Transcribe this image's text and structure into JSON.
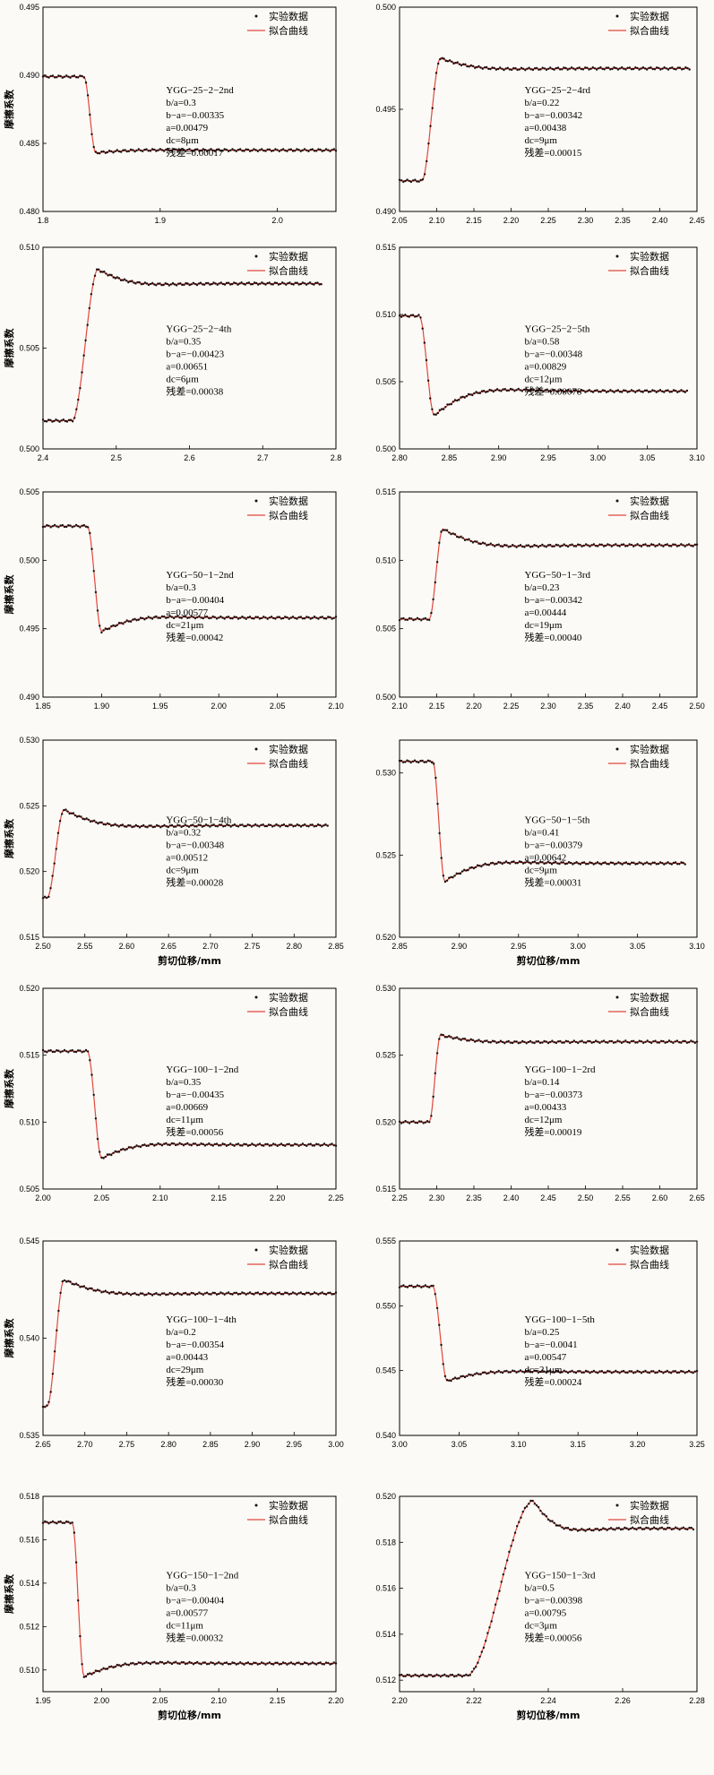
{
  "chart_data": [
    {
      "type": "scatter",
      "xlim": [
        1.8,
        2.05
      ],
      "ylim": [
        0.48,
        0.495
      ],
      "xticks": [
        "1.8",
        "1.9",
        "2.0"
      ],
      "xtickv": [
        1.8,
        1.9,
        2.0
      ],
      "yticks": [
        "0.480",
        "0.485",
        "0.490",
        "0.495"
      ],
      "ytickv": [
        0.48,
        0.485,
        0.49,
        0.495
      ],
      "ylabel": "摩擦系数",
      "xlabel": "",
      "legend": [
        "实验数据",
        "拟合曲线"
      ],
      "ann": [
        "YGG−25−2−2nd",
        "b/a=0.3",
        "b−a=−0.00335",
        "a=0.00479",
        "dc=8μm",
        "残差=0.00017"
      ],
      "model": {
        "x0": 1.835,
        "x1": 1.845,
        "ys": 0.4899,
        "ypk": 0.4843,
        "yss": 0.4845,
        "xe": 2.05
      }
    },
    {
      "type": "scatter",
      "xlim": [
        2.05,
        2.45
      ],
      "ylim": [
        0.49,
        0.5
      ],
      "xticks": [
        "2.05",
        "2.10",
        "2.15",
        "2.20",
        "2.25",
        "2.30",
        "2.35",
        "2.40",
        "2.45"
      ],
      "xtickv": [
        2.05,
        2.1,
        2.15,
        2.2,
        2.25,
        2.3,
        2.35,
        2.4,
        2.45
      ],
      "yticks": [
        "0.490",
        "0.495",
        "0.500"
      ],
      "ytickv": [
        0.49,
        0.495,
        0.5
      ],
      "ylabel": "",
      "xlabel": "",
      "legend": [
        "实验数据",
        "拟合曲线"
      ],
      "ann": [
        "YGG−25−2−4rd",
        "b/a=0.22",
        "b−a=−0.00342",
        "a=0.00438",
        "dc=9μm",
        "残差=0.00015"
      ],
      "model": {
        "x0": 2.08,
        "x1": 2.105,
        "ys": 0.4915,
        "ypk": 0.4975,
        "yss": 0.497,
        "xe": 2.44
      }
    },
    {
      "type": "scatter",
      "xlim": [
        2.4,
        2.8
      ],
      "ylim": [
        0.5,
        0.51
      ],
      "xticks": [
        "2.4",
        "2.5",
        "2.6",
        "2.7",
        "2.8"
      ],
      "xtickv": [
        2.4,
        2.5,
        2.6,
        2.7,
        2.8
      ],
      "yticks": [
        "0.500",
        "0.505",
        "0.510"
      ],
      "ytickv": [
        0.5,
        0.505,
        0.51
      ],
      "ylabel": "摩擦系数",
      "xlabel": "",
      "legend": [
        "实验数据",
        "拟合曲线"
      ],
      "ann": [
        "YGG−25−2−4th",
        "b/a=0.35",
        "b−a=−0.00423",
        "a=0.00651",
        "dc=6μm",
        "残差=0.00038"
      ],
      "model": {
        "x0": 2.44,
        "x1": 2.475,
        "ys": 0.5014,
        "ypk": 0.5089,
        "yss": 0.5082,
        "xe": 2.78
      }
    },
    {
      "type": "scatter",
      "xlim": [
        2.8,
        3.1
      ],
      "ylim": [
        0.5,
        0.515
      ],
      "xticks": [
        "2.80",
        "2.85",
        "2.90",
        "2.95",
        "3.00",
        "3.05",
        "3.10"
      ],
      "xtickv": [
        2.8,
        2.85,
        2.9,
        2.95,
        3.0,
        3.05,
        3.1
      ],
      "yticks": [
        "0.500",
        "0.505",
        "0.510",
        "0.515"
      ],
      "ytickv": [
        0.5,
        0.505,
        0.51,
        0.515
      ],
      "ylabel": "",
      "xlabel": "",
      "legend": [
        "实验数据",
        "拟合曲线"
      ],
      "ann": [
        "YGG−25−2−5th",
        "b/a=0.58",
        "b−a=−0.00348",
        "a=0.00829",
        "dc=12μm",
        "残差=0.00078"
      ],
      "model": {
        "x0": 2.82,
        "x1": 2.835,
        "ys": 0.5099,
        "ypk": 0.5025,
        "yss": 0.5043,
        "xe": 3.09
      }
    },
    {
      "type": "scatter",
      "xlim": [
        1.85,
        2.1
      ],
      "ylim": [
        0.49,
        0.505
      ],
      "xticks": [
        "1.85",
        "1.90",
        "1.95",
        "2.00",
        "2.05",
        "2.10"
      ],
      "xtickv": [
        1.85,
        1.9,
        1.95,
        2.0,
        2.05,
        2.1
      ],
      "yticks": [
        "0.490",
        "0.495",
        "0.500",
        "0.505"
      ],
      "ytickv": [
        0.49,
        0.495,
        0.5,
        0.505
      ],
      "ylabel": "摩擦系数",
      "xlabel": "",
      "legend": [
        "实验数据",
        "拟合曲线"
      ],
      "ann": [
        "YGG−50−1−2nd",
        "b/a=0.3",
        "b−a=−0.00404",
        "a=0.00577",
        "dc=21μm",
        "残差=0.00042"
      ],
      "model": {
        "x0": 1.888,
        "x1": 1.9,
        "ys": 0.5025,
        "ypk": 0.4948,
        "yss": 0.4958,
        "xe": 2.1
      }
    },
    {
      "type": "scatter",
      "xlim": [
        2.1,
        2.5
      ],
      "ylim": [
        0.5,
        0.515
      ],
      "xticks": [
        "2.10",
        "2.15",
        "2.20",
        "2.25",
        "2.30",
        "2.35",
        "2.40",
        "2.45",
        "2.50"
      ],
      "xtickv": [
        2.1,
        2.15,
        2.2,
        2.25,
        2.3,
        2.35,
        2.4,
        2.45,
        2.5
      ],
      "yticks": [
        "0.500",
        "0.505",
        "0.510",
        "0.515"
      ],
      "ytickv": [
        0.5,
        0.505,
        0.51,
        0.515
      ],
      "ylabel": "",
      "xlabel": "",
      "legend": [
        "实验数据",
        "拟合曲线"
      ],
      "ann": [
        "YGG−50−1−3rd",
        "b/a=0.23",
        "b−a=−0.00342",
        "a=0.00444",
        "dc=19μm",
        "残差=0.00040"
      ],
      "model": {
        "x0": 2.14,
        "x1": 2.158,
        "ys": 0.5057,
        "ypk": 0.5123,
        "yss": 0.5111,
        "xe": 2.5
      }
    },
    {
      "type": "scatter",
      "xlim": [
        2.5,
        2.85
      ],
      "ylim": [
        0.515,
        0.53
      ],
      "xticks": [
        "2.50",
        "2.55",
        "2.60",
        "2.65",
        "2.70",
        "2.75",
        "2.80",
        "2.85"
      ],
      "xtickv": [
        2.5,
        2.55,
        2.6,
        2.65,
        2.7,
        2.75,
        2.8,
        2.85
      ],
      "yticks": [
        "0.515",
        "0.520",
        "0.525",
        "0.530"
      ],
      "ytickv": [
        0.515,
        0.52,
        0.525,
        0.53
      ],
      "ylabel": "摩擦系数",
      "xlabel": "剪切位移/mm",
      "legend": [
        "实验数据",
        "拟合曲线"
      ],
      "ann": [
        "YGG−50−1−4th",
        "b/a=0.32",
        "b−a=−0.00348",
        "a=0.00512",
        "dc=9μm",
        "残差=0.00028"
      ],
      "model": {
        "x0": 2.505,
        "x1": 2.525,
        "ys": 0.518,
        "ypk": 0.5247,
        "yss": 0.5235,
        "xe": 2.84
      }
    },
    {
      "type": "scatter",
      "xlim": [
        2.85,
        3.1
      ],
      "ylim": [
        0.52,
        0.532
      ],
      "xticks": [
        "2.85",
        "2.90",
        "2.95",
        "3.00",
        "3.05",
        "3.10"
      ],
      "xtickv": [
        2.85,
        2.9,
        2.95,
        3.0,
        3.05,
        3.1
      ],
      "yticks": [
        "0.520",
        "0.525",
        "0.530"
      ],
      "ytickv": [
        0.52,
        0.525,
        0.53
      ],
      "ylabel": "",
      "xlabel": "剪切位移/mm",
      "legend": [
        "实验数据",
        "拟合曲线"
      ],
      "ann": [
        "YGG−50−1−5th",
        "b/a=0.41",
        "b−a=−0.00379",
        "a=0.00642",
        "dc=9μm",
        "残差=0.00031"
      ],
      "model": {
        "x0": 2.878,
        "x1": 2.888,
        "ys": 0.5307,
        "ypk": 0.5234,
        "yss": 0.5245,
        "xe": 3.09
      }
    },
    {
      "type": "scatter",
      "xlim": [
        2.0,
        2.25
      ],
      "ylim": [
        0.505,
        0.52
      ],
      "xticks": [
        "2.00",
        "2.05",
        "2.10",
        "2.15",
        "2.20",
        "2.25"
      ],
      "xtickv": [
        2.0,
        2.05,
        2.1,
        2.15,
        2.2,
        2.25
      ],
      "yticks": [
        "0.505",
        "0.510",
        "0.515",
        "0.520"
      ],
      "ytickv": [
        0.505,
        0.51,
        0.515,
        0.52
      ],
      "ylabel": "摩擦系数",
      "xlabel": "",
      "legend": [
        "实验数据",
        "拟合曲线"
      ],
      "ann": [
        "YGG−100−1−2nd",
        "b/a=0.35",
        "b−a=−0.00435",
        "a=0.00669",
        "dc=11μm",
        "残差=0.00056"
      ],
      "model": {
        "x0": 2.038,
        "x1": 2.05,
        "ys": 0.5153,
        "ypk": 0.5073,
        "yss": 0.5083,
        "xe": 2.25
      }
    },
    {
      "type": "scatter",
      "xlim": [
        2.25,
        2.65
      ],
      "ylim": [
        0.515,
        0.53
      ],
      "xticks": [
        "2.25",
        "2.30",
        "2.35",
        "2.40",
        "2.45",
        "2.50",
        "2.55",
        "2.60",
        "2.65"
      ],
      "xtickv": [
        2.25,
        2.3,
        2.35,
        2.4,
        2.45,
        2.5,
        2.55,
        2.6,
        2.65
      ],
      "yticks": [
        "0.515",
        "0.520",
        "0.525",
        "0.530"
      ],
      "ytickv": [
        0.515,
        0.52,
        0.525,
        0.53
      ],
      "ylabel": "",
      "xlabel": "",
      "legend": [
        "实验数据",
        "拟合曲线"
      ],
      "ann": [
        "YGG−100−1−2rd",
        "b/a=0.14",
        "b−a=−0.00373",
        "a=0.00433",
        "dc=12μm",
        "残差=0.00019"
      ],
      "model": {
        "x0": 2.29,
        "x1": 2.305,
        "ys": 0.52,
        "ypk": 0.5265,
        "yss": 0.526,
        "xe": 2.65
      }
    },
    {
      "type": "scatter",
      "xlim": [
        2.65,
        3.0
      ],
      "ylim": [
        0.535,
        0.545
      ],
      "xticks": [
        "2.65",
        "2.70",
        "2.75",
        "2.80",
        "2.85",
        "2.90",
        "2.95",
        "3.00"
      ],
      "xtickv": [
        2.65,
        2.7,
        2.75,
        2.8,
        2.85,
        2.9,
        2.95,
        3.0
      ],
      "yticks": [
        "0.535",
        "0.540",
        "0.545"
      ],
      "ytickv": [
        0.535,
        0.54,
        0.545
      ],
      "ylabel": "摩擦系数",
      "xlabel": "",
      "legend": [
        "实验数据",
        "拟合曲线"
      ],
      "ann": [
        "YGG−100−1−4th",
        "b/a=0.2",
        "b−a=−0.00354",
        "a=0.00443",
        "dc=29μm",
        "残差=0.00030"
      ],
      "model": {
        "x0": 2.655,
        "x1": 2.675,
        "ys": 0.5365,
        "ypk": 0.543,
        "yss": 0.5423,
        "xe": 3.0
      }
    },
    {
      "type": "scatter",
      "xlim": [
        3.0,
        3.25
      ],
      "ylim": [
        0.54,
        0.555
      ],
      "xticks": [
        "3.00",
        "3.05",
        "3.10",
        "3.15",
        "3.20",
        "3.25"
      ],
      "xtickv": [
        3.0,
        3.05,
        3.1,
        3.15,
        3.2,
        3.25
      ],
      "yticks": [
        "0.540",
        "0.545",
        "0.550",
        "0.555"
      ],
      "ytickv": [
        0.54,
        0.545,
        0.55,
        0.555
      ],
      "ylabel": "",
      "xlabel": "",
      "legend": [
        "实验数据",
        "拟合曲线"
      ],
      "ann": [
        "YGG−100−1−5th",
        "b/a=0.25",
        "b−a=−0.0041",
        "a=0.00547",
        "dc=21μm",
        "残差=0.00024"
      ],
      "model": {
        "x0": 3.028,
        "x1": 3.04,
        "ys": 0.5515,
        "ypk": 0.5442,
        "yss": 0.5449,
        "xe": 3.25
      }
    },
    {
      "type": "scatter",
      "xlim": [
        1.95,
        2.2
      ],
      "ylim": [
        0.509,
        0.518
      ],
      "xticks": [
        "1.95",
        "2.00",
        "2.05",
        "2.10",
        "2.15",
        "2.20"
      ],
      "xtickv": [
        1.95,
        2.0,
        2.05,
        2.1,
        2.15,
        2.2
      ],
      "yticks": [
        "0.510",
        "0.512",
        "0.514",
        "0.516",
        "0.518"
      ],
      "ytickv": [
        0.51,
        0.512,
        0.514,
        0.516,
        0.518
      ],
      "ylabel": "摩擦系数",
      "xlabel": "剪切位移/mm",
      "legend": [
        "实验数据",
        "拟合曲线"
      ],
      "ann": [
        "YGG−150−1−2nd",
        "b/a=0.3",
        "b−a=−0.00404",
        "a=0.00577",
        "dc=11μm",
        "残差=0.00032"
      ],
      "model": {
        "x0": 1.975,
        "x1": 1.985,
        "ys": 0.5168,
        "ypk": 0.5097,
        "yss": 0.5103,
        "xe": 2.2
      }
    },
    {
      "type": "scatter",
      "xlim": [
        2.2,
        2.28
      ],
      "ylim": [
        0.5115,
        0.52
      ],
      "xticks": [
        "2.20",
        "2.22",
        "2.24",
        "2.26",
        "2.28"
      ],
      "xtickv": [
        2.2,
        2.22,
        2.24,
        2.26,
        2.28
      ],
      "yticks": [
        "0.512",
        "0.514",
        "0.516",
        "0.518",
        "0.520"
      ],
      "ytickv": [
        0.512,
        0.514,
        0.516,
        0.518,
        0.52
      ],
      "ylabel": "",
      "xlabel": "剪切位移/mm",
      "legend": [
        "实验数据",
        "拟合曲线"
      ],
      "ann": [
        "YGG−150−1−3rd",
        "b/a=0.5",
        "b−a=−0.00398",
        "a=0.00795",
        "dc=3μm",
        "残差=0.00056"
      ],
      "model": {
        "x0": 2.218,
        "x1": 2.236,
        "ys": 0.5122,
        "ypk": 0.5198,
        "yss": 0.5186,
        "xe": 2.279
      }
    }
  ]
}
